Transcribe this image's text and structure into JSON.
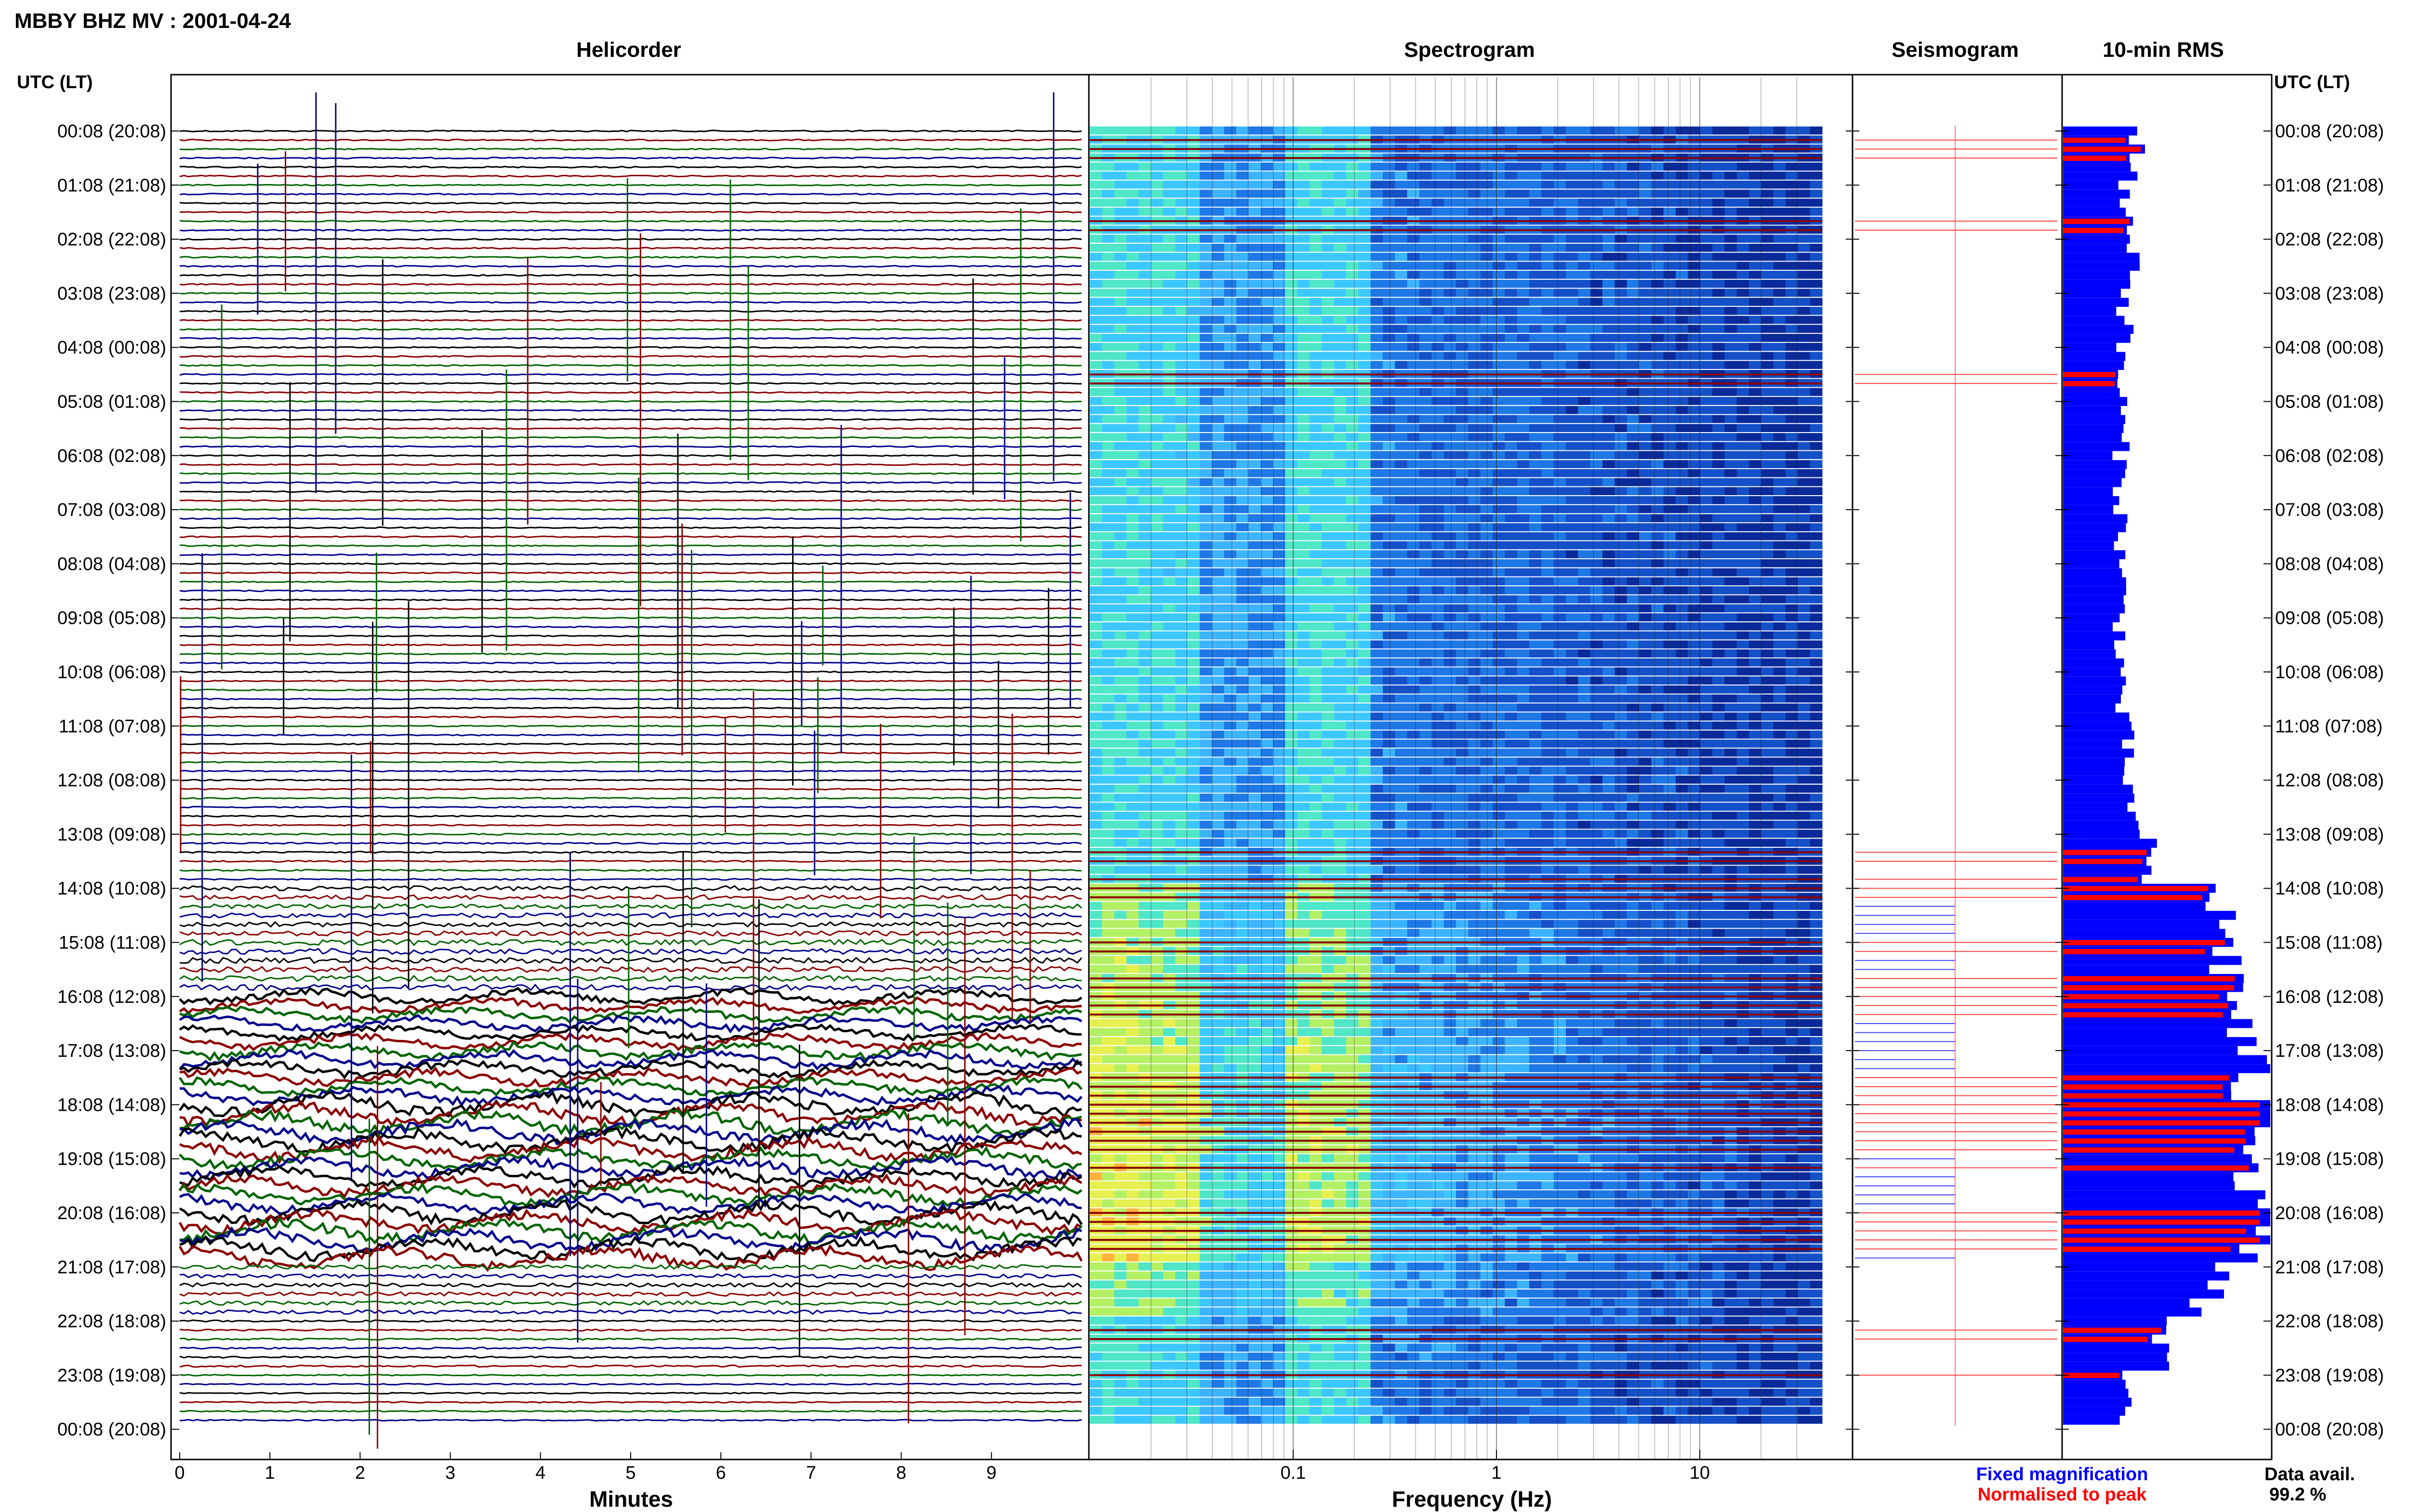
{
  "title": "MBBY BHZ MV : 2001-04-24",
  "panels": {
    "helicorder": "Helicorder",
    "spectrogram": "Spectrogram",
    "seismogram": "Seismogram",
    "rms": "10-min RMS"
  },
  "time_axis_label": "UTC (LT)",
  "time_labels": [
    "00:08 (20:08)",
    "01:08 (21:08)",
    "02:08 (22:08)",
    "03:08 (23:08)",
    "04:08 (00:08)",
    "05:08 (01:08)",
    "06:08 (02:08)",
    "07:08 (03:08)",
    "08:08 (04:08)",
    "09:08 (05:08)",
    "10:08 (06:08)",
    "11:08 (07:08)",
    "12:08 (08:08)",
    "13:08 (09:08)",
    "14:08 (10:08)",
    "15:08 (11:08)",
    "16:08 (12:08)",
    "17:08 (13:08)",
    "18:08 (14:08)",
    "19:08 (15:08)",
    "20:08 (16:08)",
    "21:08 (17:08)",
    "22:08 (18:08)",
    "23:08 (19:08)",
    "00:08 (20:08)"
  ],
  "helicorder_xlabel": "Minutes",
  "helicorder_ticks": [
    "0",
    "1",
    "2",
    "3",
    "4",
    "5",
    "6",
    "7",
    "8",
    "9"
  ],
  "spectrogram_xlabel": "Frequency (Hz)",
  "spectrogram_ticks": [
    "0.1",
    "1",
    "10"
  ],
  "legend": {
    "fixed": "Fixed magnification",
    "normalised": "Normalised to peak"
  },
  "data_avail": {
    "label": "Data avail.",
    "value": "99.2 %"
  },
  "colors": {
    "trace_black": "#000000",
    "trace_red": "#8b0000",
    "trace_green": "#006400",
    "trace_blue": "#00008b",
    "fixed_bar": "#0000ff",
    "normalised_bar": "#ff0000",
    "spec_low": "#1450c8",
    "spec_mid": "#3cc8ff",
    "spec_high": "#e6f050"
  },
  "chart_data": {
    "type": "bar",
    "title": "10-min RMS",
    "xlabel": "",
    "ylabel": "UTC (LT)",
    "x_units": "relative",
    "y": "10-minute intervals from 00:08 to 00:08 (UTC), 144 rows",
    "rms_fixed_approx_by_hour": [
      {
        "hour": "00:08",
        "value": 0.35
      },
      {
        "hour": "01:08",
        "value": 0.3
      },
      {
        "hour": "02:08",
        "value": 0.35
      },
      {
        "hour": "03:08",
        "value": 0.3
      },
      {
        "hour": "04:08",
        "value": 0.28
      },
      {
        "hour": "05:08",
        "value": 0.28
      },
      {
        "hour": "06:08",
        "value": 0.28
      },
      {
        "hour": "07:08",
        "value": 0.28
      },
      {
        "hour": "08:08",
        "value": 0.28
      },
      {
        "hour": "09:08",
        "value": 0.28
      },
      {
        "hour": "10:08",
        "value": 0.28
      },
      {
        "hour": "11:08",
        "value": 0.3
      },
      {
        "hour": "12:08",
        "value": 0.32
      },
      {
        "hour": "13:08",
        "value": 0.4
      },
      {
        "hour": "14:08",
        "value": 0.75
      },
      {
        "hour": "15:08",
        "value": 0.8
      },
      {
        "hour": "16:08",
        "value": 0.85
      },
      {
        "hour": "17:08",
        "value": 0.9
      },
      {
        "hour": "18:08",
        "value": 1.0
      },
      {
        "hour": "19:08",
        "value": 0.95
      },
      {
        "hour": "20:08",
        "value": 1.0
      },
      {
        "hour": "21:08",
        "value": 0.7
      },
      {
        "hour": "22:08",
        "value": 0.45
      },
      {
        "hour": "23:08",
        "value": 0.3
      }
    ],
    "normalised_peaks_rows": [
      1,
      2,
      3,
      10,
      11,
      27,
      28,
      80,
      81,
      83,
      84,
      85,
      90,
      91,
      94,
      95,
      96,
      97,
      98,
      105,
      106,
      107,
      108,
      109,
      110,
      111,
      112,
      113,
      115,
      120,
      121,
      122,
      123,
      124,
      133,
      134,
      138
    ]
  }
}
